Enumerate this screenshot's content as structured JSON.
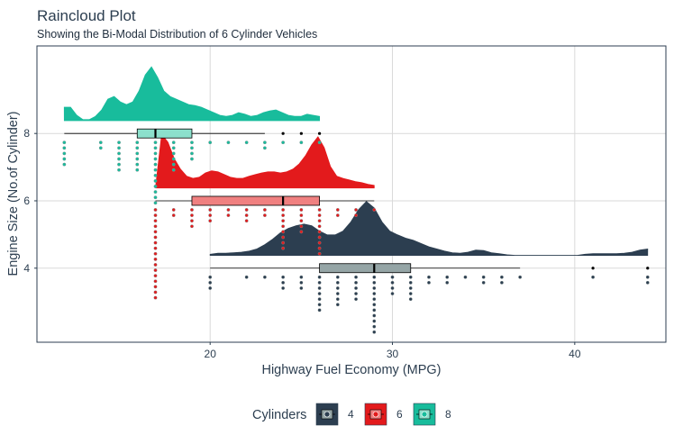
{
  "chart_data": {
    "type": "raincloud",
    "title": "Raincloud Plot",
    "subtitle": "Showing the Bi-Modal Distribution of 6 Cylinder Vehicles",
    "xlabel": "Highway Fuel Economy (MPG)",
    "ylabel": "Engine Size (No.of Cylinder)",
    "xlim": [
      10.5,
      45
    ],
    "ylim": [
      1.8,
      10.6
    ],
    "x_ticks": [
      20,
      30,
      40
    ],
    "y_ticks": [
      4,
      6,
      8
    ],
    "legend": {
      "title": "Cylinders",
      "position": "bottom"
    },
    "series": [
      {
        "name": "4",
        "cyl": 4,
        "color": "#2c3e50",
        "box_fill": "#95a5a6",
        "box": {
          "whisker_low": 20,
          "q1": 26,
          "median": 29,
          "q3": 31,
          "whisker_high": 37
        },
        "outliers": [
          41,
          44
        ],
        "density_range": [
          20,
          44
        ],
        "density": [
          0.02,
          0.04,
          0.04,
          0.05,
          0.06,
          0.08,
          0.12,
          0.2,
          0.3,
          0.42,
          0.5,
          0.55,
          0.58,
          0.55,
          0.45,
          0.38,
          0.38,
          0.45,
          0.62,
          0.85,
          1.0,
          0.88,
          0.62,
          0.45,
          0.38,
          0.32,
          0.28,
          0.22,
          0.16,
          0.12,
          0.08,
          0.05,
          0.04,
          0.06,
          0.1,
          0.09,
          0.05,
          0.03,
          0.01,
          0.0,
          0.0,
          0.0,
          0.0,
          0.0,
          0.0,
          0.0,
          0.0,
          0.0,
          0.02,
          0.03,
          0.03,
          0.03,
          0.03,
          0.04,
          0.06,
          0.1,
          0.12
        ],
        "points": [
          20,
          20,
          20,
          22,
          23,
          24,
          24,
          24,
          25,
          25,
          25,
          26,
          26,
          26,
          26,
          26,
          26,
          26,
          27,
          27,
          27,
          27,
          27,
          27,
          28,
          28,
          28,
          28,
          28,
          29,
          29,
          29,
          29,
          29,
          29,
          29,
          29,
          29,
          29,
          29,
          30,
          30,
          30,
          30,
          31,
          31,
          31,
          31,
          31,
          32,
          32,
          33,
          33,
          34,
          35,
          35,
          36,
          36,
          37,
          41,
          44,
          44
        ]
      },
      {
        "name": "6",
        "cyl": 6,
        "color": "#e31a1c",
        "box_fill": "#f08080",
        "box": {
          "whisker_low": 17,
          "q1": 19,
          "median": 24,
          "q3": 26,
          "whisker_high": 29
        },
        "outliers": [],
        "density_range": [
          17,
          29
        ],
        "density": [
          0.0,
          1.0,
          0.85,
          0.55,
          0.35,
          0.22,
          0.18,
          0.2,
          0.28,
          0.32,
          0.3,
          0.25,
          0.2,
          0.18,
          0.18,
          0.22,
          0.25,
          0.28,
          0.3,
          0.3,
          0.28,
          0.3,
          0.35,
          0.45,
          0.6,
          0.8,
          0.95,
          0.75,
          0.4,
          0.22,
          0.18,
          0.15,
          0.12,
          0.1,
          0.07,
          0.05
        ],
        "points": [
          17,
          17,
          17,
          17,
          17,
          17,
          17,
          17,
          17,
          17,
          17,
          17,
          17,
          17,
          17,
          17,
          17,
          18,
          18,
          19,
          19,
          19,
          19,
          20,
          20,
          20,
          21,
          21,
          22,
          22,
          22,
          23,
          23,
          24,
          24,
          24,
          24,
          24,
          24,
          24,
          24,
          25,
          25,
          25,
          25,
          25,
          26,
          26,
          26,
          26,
          26,
          26,
          26,
          26,
          26,
          27,
          27,
          28,
          28,
          29
        ]
      },
      {
        "name": "8",
        "cyl": 8,
        "color": "#18bc9c",
        "box_fill": "#8ce0cc",
        "box": {
          "whisker_low": 12,
          "q1": 16,
          "median": 17,
          "q3": 19,
          "whisker_high": 23
        },
        "outliers": [
          24,
          25,
          26
        ],
        "density_range": [
          12,
          26
        ],
        "density": [
          0.25,
          0.25,
          0.1,
          0.02,
          0.02,
          0.08,
          0.2,
          0.4,
          0.45,
          0.35,
          0.3,
          0.35,
          0.55,
          0.85,
          1.0,
          0.8,
          0.55,
          0.45,
          0.4,
          0.35,
          0.3,
          0.28,
          0.25,
          0.2,
          0.15,
          0.1,
          0.08,
          0.1,
          0.15,
          0.12,
          0.08,
          0.1,
          0.15,
          0.18,
          0.2,
          0.15,
          0.1,
          0.08,
          0.08,
          0.12,
          0.1,
          0.08
        ],
        "points": [
          12,
          12,
          12,
          12,
          12,
          14,
          14,
          15,
          15,
          15,
          15,
          15,
          15,
          16,
          16,
          16,
          16,
          16,
          16,
          17,
          17,
          17,
          17,
          17,
          17,
          17,
          17,
          17,
          17,
          17,
          17,
          18,
          18,
          18,
          18,
          18,
          18,
          19,
          19,
          19,
          19,
          20,
          21,
          22,
          23,
          23,
          24,
          25,
          26
        ]
      }
    ]
  }
}
